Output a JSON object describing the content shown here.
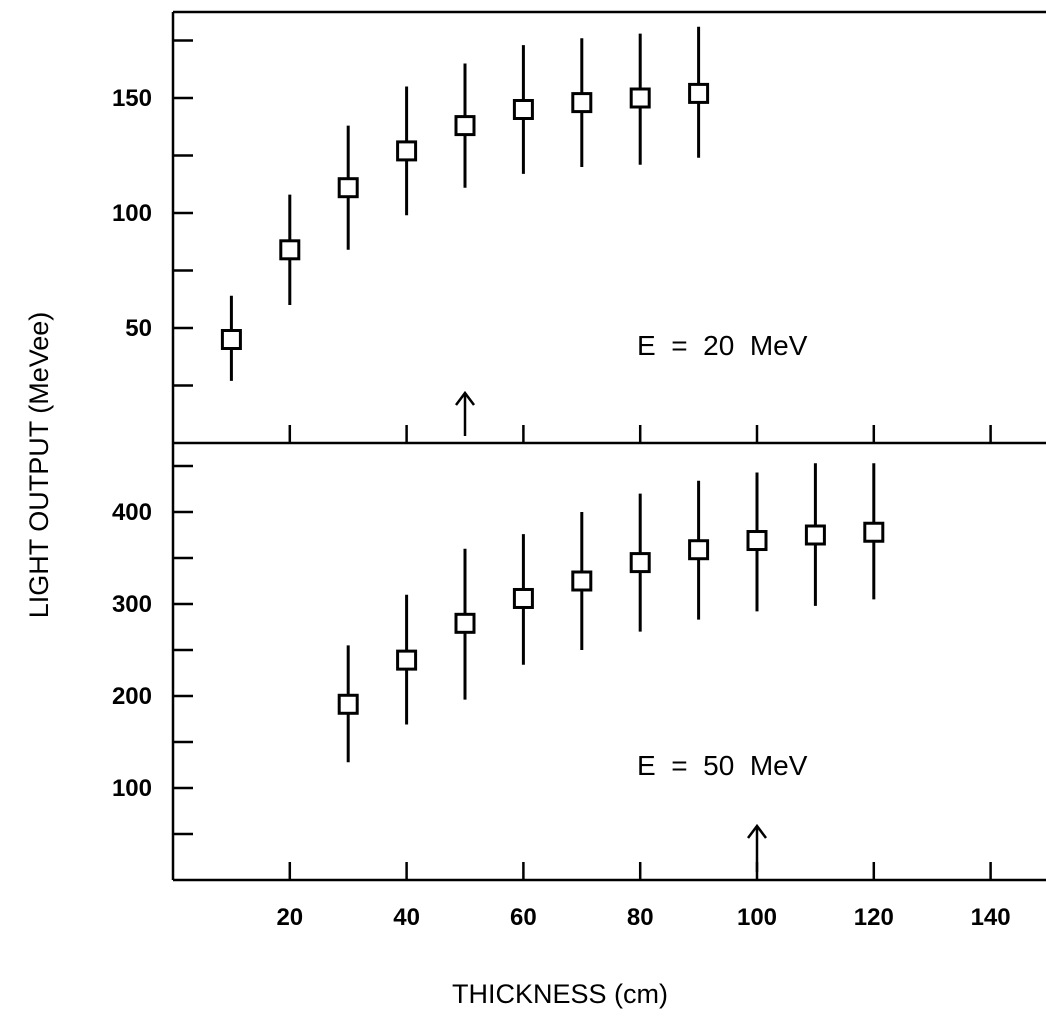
{
  "chart_data": [
    {
      "type": "scatter",
      "panel": "top",
      "annotation": "E  =  20  MeV",
      "xlabel": "THICKNESS (cm)",
      "ylabel": "LIGHT OUTPUT (MeVee)",
      "xlim": [
        0,
        150
      ],
      "ylim": [
        0,
        175
      ],
      "yticks": [
        50,
        100,
        150
      ],
      "yminor": [
        25,
        75,
        125,
        175
      ],
      "grid": false,
      "arrow_at_x": 50,
      "points": [
        {
          "x": 10,
          "y": 45,
          "ylow": 27,
          "yhigh": 64
        },
        {
          "x": 20,
          "y": 84,
          "ylow": 60,
          "yhigh": 108
        },
        {
          "x": 30,
          "y": 111,
          "ylow": 84,
          "yhigh": 138
        },
        {
          "x": 40,
          "y": 127,
          "ylow": 99,
          "yhigh": 155
        },
        {
          "x": 50,
          "y": 138,
          "ylow": 111,
          "yhigh": 165
        },
        {
          "x": 60,
          "y": 145,
          "ylow": 117,
          "yhigh": 173
        },
        {
          "x": 70,
          "y": 148,
          "ylow": 120,
          "yhigh": 176
        },
        {
          "x": 80,
          "y": 150,
          "ylow": 121,
          "yhigh": 178
        },
        {
          "x": 90,
          "y": 152,
          "ylow": 124,
          "yhigh": 181
        }
      ]
    },
    {
      "type": "scatter",
      "panel": "bottom",
      "annotation": "E  =  50  MeV",
      "xlabel": "THICKNESS (cm)",
      "ylabel": "LIGHT OUTPUT (MeVee)",
      "xlim": [
        0,
        150
      ],
      "ylim": [
        0,
        475
      ],
      "xticks": [
        20,
        40,
        60,
        80,
        100,
        120,
        140
      ],
      "yticks": [
        100,
        200,
        300,
        400
      ],
      "yminor": [
        50,
        150,
        250,
        350,
        450
      ],
      "grid": false,
      "arrow_at_x": 100,
      "points": [
        {
          "x": 30,
          "y": 191,
          "ylow": 128,
          "yhigh": 255
        },
        {
          "x": 40,
          "y": 239,
          "ylow": 169,
          "yhigh": 310
        },
        {
          "x": 50,
          "y": 279,
          "ylow": 196,
          "yhigh": 360
        },
        {
          "x": 60,
          "y": 306,
          "ylow": 234,
          "yhigh": 376
        },
        {
          "x": 70,
          "y": 325,
          "ylow": 250,
          "yhigh": 400
        },
        {
          "x": 80,
          "y": 345,
          "ylow": 270,
          "yhigh": 420
        },
        {
          "x": 90,
          "y": 359,
          "ylow": 283,
          "yhigh": 434
        },
        {
          "x": 100,
          "y": 369,
          "ylow": 292,
          "yhigh": 443
        },
        {
          "x": 110,
          "y": 375,
          "ylow": 298,
          "yhigh": 453
        },
        {
          "x": 120,
          "y": 378,
          "ylow": 305,
          "yhigh": 453
        }
      ]
    }
  ],
  "labels": {
    "xlabel": "THICKNESS (cm)",
    "ylabel": "LIGHT OUTPUT (MeVee)",
    "top_annotation": "E  =  20  MeV",
    "bottom_annotation": "E  =  50  MeV"
  }
}
